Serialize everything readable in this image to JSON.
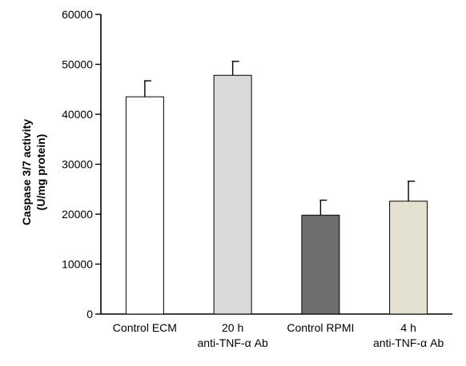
{
  "chart_data": {
    "type": "bar",
    "title": "",
    "xlabel": "",
    "ylabel_lines": [
      "Caspase 3/7 activity",
      "(U/mg protein)"
    ],
    "ylim": [
      0,
      60000
    ],
    "yticks": [
      0,
      10000,
      20000,
      30000,
      40000,
      50000,
      60000
    ],
    "ytick_labels": [
      "0",
      "10000",
      "20000",
      "30000",
      "40000",
      "50000",
      "60000"
    ],
    "grid": false,
    "legend": "none",
    "categories": [
      {
        "lines": [
          "Control ECM"
        ]
      },
      {
        "lines": [
          "20 h",
          "anti-TNF-α Ab"
        ]
      },
      {
        "lines": [
          "Control RPMI"
        ]
      },
      {
        "lines": [
          "4 h",
          "anti-TNF-α Ab"
        ]
      }
    ],
    "values": [
      43500,
      47800,
      19800,
      22600
    ],
    "errors": [
      3200,
      2800,
      3000,
      4000
    ],
    "colors": [
      "#ffffff",
      "#d9d9d9",
      "#6e6e6e",
      "#e5e1d1"
    ]
  }
}
